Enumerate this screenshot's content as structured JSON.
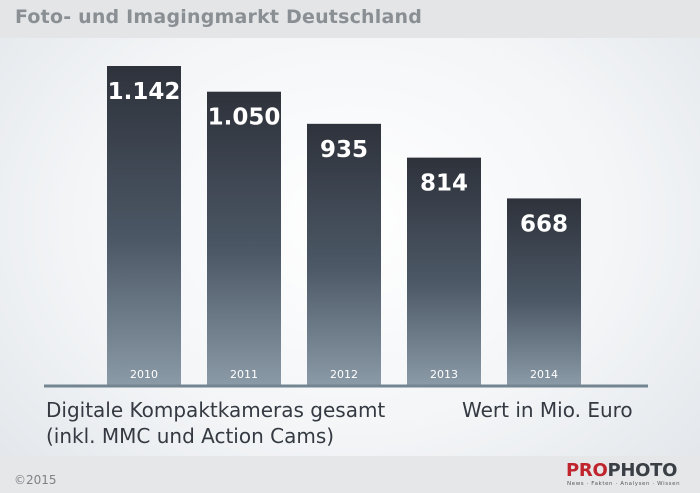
{
  "title": "Foto- und Imagingmarkt Deutschland",
  "caption": {
    "line1": "Digitale Kompaktkameras gesamt",
    "line2": "(inkl. MMC und Action Cams)"
  },
  "unit": "Wert in Mio. Euro",
  "copyright": "©2015",
  "logo": {
    "pro": "PRO",
    "photo": "PHOTO",
    "tagline": "News · Fakten · Analysen · Wissen"
  },
  "colors": {
    "bar_top": "#2e323b",
    "bar_bottom": "#8b9aa7",
    "axis": "#748592"
  },
  "chart_data": {
    "type": "bar",
    "categories": [
      "2010",
      "2011",
      "2012",
      "2013",
      "2014"
    ],
    "values": [
      1142,
      1050,
      935,
      814,
      668
    ],
    "value_labels": [
      "1.142",
      "1.050",
      "935",
      "814",
      "668"
    ],
    "ylim": [
      0,
      1300
    ],
    "grid": false,
    "legend": "none"
  }
}
